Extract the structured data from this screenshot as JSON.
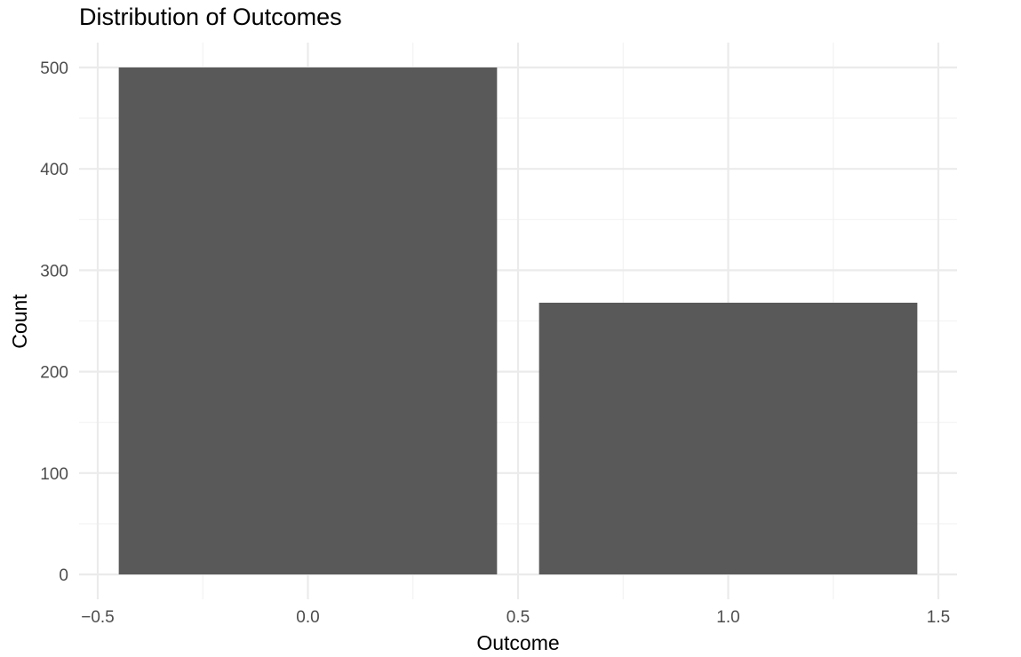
{
  "chart_data": {
    "type": "bar",
    "title": "Distribution of Outcomes",
    "xlabel": "Outcome",
    "ylabel": "Count",
    "bar_width": 0.9,
    "bars": [
      {
        "x": 0,
        "value": 500
      },
      {
        "x": 1,
        "value": 268
      }
    ],
    "x_ticks": [
      {
        "value": -0.5,
        "label": "−0.5"
      },
      {
        "value": 0.0,
        "label": "0.0"
      },
      {
        "value": 0.5,
        "label": "0.5"
      },
      {
        "value": 1.0,
        "label": "1.0"
      },
      {
        "value": 1.5,
        "label": "1.5"
      }
    ],
    "x_minor_ticks": [
      -0.25,
      0.25,
      0.75,
      1.25
    ],
    "y_ticks": [
      {
        "value": 0,
        "label": "0"
      },
      {
        "value": 100,
        "label": "100"
      },
      {
        "value": 200,
        "label": "200"
      },
      {
        "value": 300,
        "label": "300"
      },
      {
        "value": 400,
        "label": "400"
      },
      {
        "value": 500,
        "label": "500"
      }
    ],
    "y_minor_ticks": [
      50,
      150,
      250,
      350,
      450
    ],
    "xlim": [
      -0.5,
      1.5
    ],
    "ylim": [
      0,
      500
    ],
    "grid": true,
    "legend": "none",
    "bar_color": "#595959"
  }
}
